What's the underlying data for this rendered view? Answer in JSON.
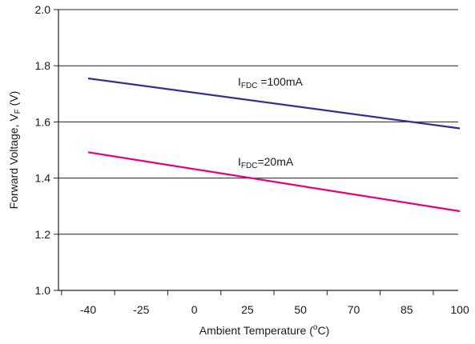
{
  "chart_data": {
    "type": "line",
    "xlabel": "Ambient Temperature (°C)",
    "ylabel": "Forward Voltage, Vₒ (V)",
    "ylabel_parts": {
      "main": "Forward Voltage, V",
      "sub": "F",
      "tail": " (V)"
    },
    "xlabel_parts": {
      "main": "Ambient Temperature (",
      "sup": "o",
      "tail": "C)"
    },
    "x_categories": [
      "-40",
      "-25",
      "0",
      "25",
      "50",
      "70",
      "85",
      "100"
    ],
    "ylim": [
      1.0,
      2.0
    ],
    "y_ticks": [
      "1.0",
      "1.2",
      "1.4",
      "1.6",
      "1.8",
      "2.0"
    ],
    "grid": "horizontal",
    "series": [
      {
        "name": "IFDC =100mA",
        "label_parts": {
          "main": "I",
          "sub": "FDC",
          "tail": " =100mA"
        },
        "color": "#2e3192",
        "x": [
          -40,
          100
        ],
        "y": [
          1.755,
          1.577
        ]
      },
      {
        "name": "IFDC=20mA",
        "label_parts": {
          "main": "I",
          "sub": "FDC",
          "tail": "=20mA"
        },
        "color": "#e6007e",
        "x": [
          -40,
          100
        ],
        "y": [
          1.492,
          1.282
        ]
      }
    ]
  }
}
